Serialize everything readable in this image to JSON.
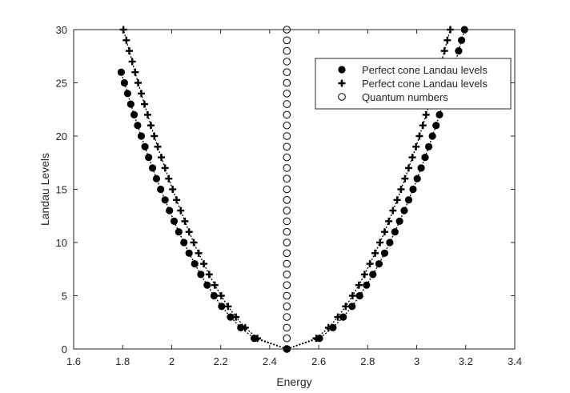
{
  "chart_data": {
    "type": "scatter",
    "xlabel": "Energy",
    "ylabel": "Landau Levels",
    "xlim": [
      1.6,
      3.4
    ],
    "ylim": [
      0,
      30
    ],
    "xticks": [
      1.6,
      1.8,
      2,
      2.2,
      2.4,
      2.6,
      2.8,
      3,
      3.2,
      3.4
    ],
    "xtick_labels": [
      "1.6",
      "1.8",
      "2",
      "2.2",
      "2.4",
      "2.6",
      "2.8",
      "3",
      "3.2",
      "3.4"
    ],
    "yticks": [
      0,
      5,
      10,
      15,
      20,
      25,
      30
    ],
    "ytick_labels": [
      "0",
      "5",
      "10",
      "15",
      "20",
      "25",
      "30"
    ],
    "grid": false,
    "legend_position": "top-right",
    "dirac_energy": 2.47,
    "series": [
      {
        "name": "Perfect cone Landau levels",
        "marker": "filled-circle",
        "color": "#000000",
        "left_x": [
          2.47,
          2.337,
          2.282,
          2.24,
          2.204,
          2.173,
          2.145,
          2.119,
          2.094,
          2.071,
          2.05,
          2.029,
          2.01,
          1.991,
          1.973,
          1.955,
          1.938,
          1.922,
          1.906,
          1.891,
          1.876,
          1.861,
          1.847,
          1.833,
          1.82,
          1.807,
          1.794
        ],
        "left_y": [
          0,
          1,
          2,
          3,
          4,
          5,
          6,
          7,
          8,
          9,
          10,
          11,
          12,
          13,
          14,
          15,
          16,
          17,
          18,
          19,
          20,
          21,
          22,
          23,
          24,
          25,
          26
        ],
        "right_x": [
          2.47,
          2.603,
          2.658,
          2.7,
          2.736,
          2.767,
          2.795,
          2.821,
          2.846,
          2.869,
          2.89,
          2.911,
          2.93,
          2.949,
          2.967,
          2.985,
          3.002,
          3.018,
          3.034,
          3.049,
          3.064,
          3.079,
          3.093,
          3.107,
          3.12,
          3.133,
          3.146,
          3.159,
          3.171,
          3.183,
          3.195
        ],
        "right_y": [
          0,
          1,
          2,
          3,
          4,
          5,
          6,
          7,
          8,
          9,
          10,
          11,
          12,
          13,
          14,
          15,
          16,
          17,
          18,
          19,
          20,
          21,
          22,
          23,
          24,
          25,
          26,
          27,
          28,
          29,
          30
        ]
      },
      {
        "name": "Perfect cone Landau levels",
        "marker": "plus",
        "color": "#000000",
        "left_x": [
          2.47,
          2.35,
          2.3,
          2.262,
          2.23,
          2.202,
          2.176,
          2.153,
          2.131,
          2.11,
          2.09,
          2.071,
          2.054,
          2.037,
          2.02,
          2.004,
          1.988,
          1.973,
          1.958,
          1.943,
          1.929,
          1.915,
          1.902,
          1.889,
          1.876,
          1.863,
          1.851,
          1.839,
          1.827,
          1.815,
          1.803
        ],
        "left_y": [
          0,
          1,
          2,
          3,
          4,
          5,
          6,
          7,
          8,
          9,
          10,
          11,
          12,
          13,
          14,
          15,
          16,
          17,
          18,
          19,
          20,
          21,
          22,
          23,
          24,
          25,
          26,
          27,
          28,
          29,
          30
        ],
        "right_x": [
          2.47,
          2.59,
          2.64,
          2.678,
          2.71,
          2.738,
          2.764,
          2.787,
          2.809,
          2.83,
          2.85,
          2.869,
          2.886,
          2.903,
          2.92,
          2.936,
          2.952,
          2.967,
          2.982,
          2.997,
          3.011,
          3.025,
          3.038,
          3.051,
          3.064,
          3.077,
          3.089,
          3.101,
          3.113,
          3.125,
          3.137
        ],
        "right_y": [
          0,
          1,
          2,
          3,
          4,
          5,
          6,
          7,
          8,
          9,
          10,
          11,
          12,
          13,
          14,
          15,
          16,
          17,
          18,
          19,
          20,
          21,
          22,
          23,
          24,
          25,
          26,
          27,
          28,
          29,
          30
        ]
      },
      {
        "name": "Quantum numbers",
        "marker": "open-circle",
        "color": "#000000",
        "x": 2.47,
        "y": [
          0,
          1,
          2,
          3,
          4,
          5,
          6,
          7,
          8,
          9,
          10,
          11,
          12,
          13,
          14,
          15,
          16,
          17,
          18,
          19,
          20,
          21,
          22,
          23,
          24,
          25,
          26,
          27,
          28,
          29,
          30
        ]
      }
    ]
  }
}
